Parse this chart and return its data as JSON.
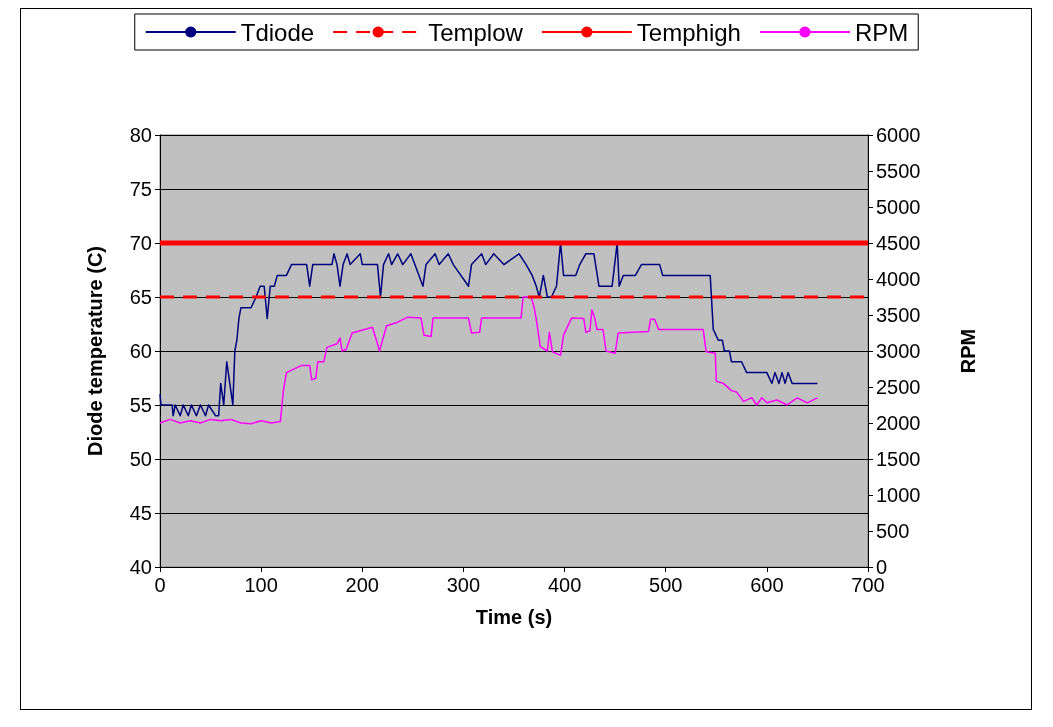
{
  "chart_data": {
    "type": "line",
    "xlabel": "Time (s)",
    "ylabel": "Diode temperature (C)",
    "y2label": "RPM",
    "xlim": [
      0,
      700
    ],
    "xticks": [
      0,
      100,
      200,
      300,
      400,
      500,
      600,
      700
    ],
    "ylim": [
      40,
      80
    ],
    "yticks": [
      40,
      45,
      50,
      55,
      60,
      65,
      70,
      75,
      80
    ],
    "y2lim": [
      0,
      6000
    ],
    "y2ticks": [
      0,
      500,
      1000,
      1500,
      2000,
      2500,
      3000,
      3500,
      4000,
      4500,
      5000,
      5500,
      6000
    ],
    "grid": "y",
    "legend": "top",
    "marker": "none",
    "series": [
      {
        "name": "Tdiode",
        "color": "#000080",
        "x": [
          0,
          1,
          12,
          13,
          15,
          20,
          23,
          28,
          31,
          36,
          40,
          45,
          48,
          55,
          58,
          60,
          63,
          66,
          69,
          72,
          74,
          76,
          78,
          80,
          90,
          95,
          99,
          103,
          106,
          109,
          113,
          116,
          125,
          130,
          145,
          148,
          151,
          170,
          172,
          175,
          178,
          181,
          185,
          188,
          198,
          200,
          215,
          218,
          221,
          226,
          229,
          235,
          240,
          248,
          252,
          260,
          263,
          272,
          276,
          285,
          290,
          305,
          308,
          318,
          322,
          330,
          340,
          355,
          362,
          368,
          372,
          375,
          379,
          383,
          387,
          392,
          396,
          399,
          411,
          415,
          421,
          429,
          434,
          441,
          447,
          452,
          454,
          458,
          470,
          476,
          494,
          497,
          544,
          547,
          552,
          556,
          558,
          563,
          565,
          575,
          580,
          600,
          605,
          608,
          612,
          615,
          618,
          621,
          625,
          650
        ],
        "values": [
          56,
          55,
          55,
          54,
          55,
          54,
          55,
          54,
          55,
          54,
          55,
          54,
          55,
          54,
          54,
          57,
          55,
          59,
          57,
          55,
          60,
          61,
          63,
          64,
          64,
          65,
          66,
          66,
          63,
          66,
          66,
          67,
          67,
          68,
          68,
          66,
          68,
          68,
          69,
          68,
          66,
          68,
          69,
          68,
          69,
          68,
          68,
          65,
          68,
          69,
          68,
          69,
          68,
          69,
          68,
          66,
          68,
          69,
          68,
          69,
          68,
          66,
          68,
          69,
          68,
          69,
          68,
          69,
          68,
          67,
          66,
          65,
          67,
          65,
          65,
          66,
          70,
          67,
          67,
          68,
          69,
          69,
          66,
          66,
          66,
          70,
          66,
          67,
          67,
          68,
          68,
          67,
          67,
          62,
          61,
          61,
          60,
          60,
          59,
          59,
          58,
          58,
          57,
          58,
          57,
          58,
          57,
          58,
          57,
          57
        ]
      },
      {
        "name": "Templow",
        "color": "#ff0000",
        "line_style": "dashed",
        "x": [
          0,
          700
        ],
        "values": [
          65,
          65
        ]
      },
      {
        "name": "Temphigh",
        "color": "#ff0000",
        "x": [
          0,
          700
        ],
        "values": [
          70,
          70
        ]
      },
      {
        "name": "RPM",
        "color": "#ff00ff",
        "axis": "y2",
        "x": [
          0,
          10,
          20,
          30,
          40,
          50,
          60,
          70,
          80,
          90,
          100,
          110,
          119,
          122,
          125,
          140,
          148,
          150,
          154,
          156,
          162,
          165,
          175,
          178,
          180,
          184,
          190,
          210,
          214,
          217,
          220,
          224,
          235,
          245,
          258,
          261,
          268,
          270,
          305,
          308,
          316,
          318,
          357,
          359,
          367,
          370,
          372,
          376,
          383,
          385,
          388,
          396,
          399,
          407,
          419,
          421,
          425,
          427,
          430,
          432,
          438,
          441,
          450,
          453,
          483,
          485,
          489,
          493,
          537,
          540,
          549,
          550,
          557,
          565,
          570,
          577,
          585,
          590,
          595,
          600,
          610,
          620,
          630,
          640,
          650
        ],
        "values": [
          2000,
          2050,
          2000,
          2030,
          2000,
          2050,
          2030,
          2050,
          2000,
          1990,
          2030,
          2000,
          2020,
          2450,
          2700,
          2800,
          2800,
          2600,
          2620,
          2850,
          2850,
          3050,
          3100,
          3180,
          3000,
          3020,
          3250,
          3330,
          3150,
          3000,
          3150,
          3350,
          3400,
          3470,
          3460,
          3220,
          3200,
          3460,
          3460,
          3250,
          3260,
          3460,
          3460,
          3750,
          3750,
          3600,
          3440,
          3060,
          3000,
          3260,
          2990,
          2940,
          3220,
          3460,
          3450,
          3260,
          3280,
          3570,
          3450,
          3300,
          3300,
          3000,
          2970,
          3250,
          3270,
          3440,
          3440,
          3300,
          3300,
          2990,
          2970,
          2580,
          2550,
          2450,
          2430,
          2300,
          2350,
          2250,
          2350,
          2280,
          2320,
          2250,
          2350,
          2280,
          2350
        ]
      }
    ]
  }
}
